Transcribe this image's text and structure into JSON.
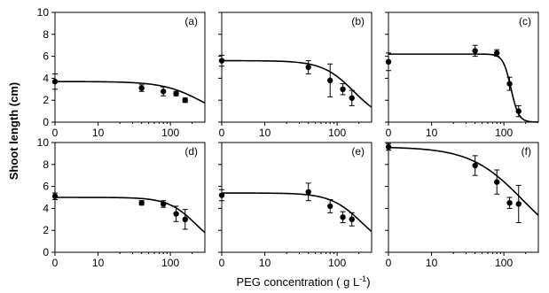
{
  "chart_data": {
    "type": "scatter",
    "layout": "2x3 grid of panels",
    "xlabel": "PEG concentration ( g L",
    "xlabel_sup": "-1",
    "xlabel_close": ")",
    "ylabel": "Shoot length (cm)",
    "x_scale": "log (0 shown at axis origin)",
    "x_ticks": [
      0,
      10,
      100
    ],
    "x_tick_labels": [
      "0",
      "10",
      "100"
    ],
    "xlim": [
      0,
      300
    ],
    "ylim": [
      0,
      10
    ],
    "y_ticks": [
      0,
      2,
      4,
      6,
      8,
      10
    ],
    "y_tick_labels": [
      "0",
      "2",
      "4",
      "6",
      "8",
      "10"
    ],
    "grid": false,
    "colors": {
      "marker": "#000000",
      "curve": "#000000"
    },
    "panels": [
      {
        "label": "(a)",
        "points": [
          {
            "x": 0,
            "y": 3.7,
            "err": 0.7
          },
          {
            "x": 40,
            "y": 3.1,
            "err": 0.3
          },
          {
            "x": 80,
            "y": 2.8,
            "err": 0.4
          },
          {
            "x": 120,
            "y": 2.6,
            "err": 0.2
          },
          {
            "x": 160,
            "y": 2.0,
            "err": 0.2
          }
        ],
        "curve": {
          "plateau": 3.7,
          "ec50": 280,
          "hill": 1.6
        }
      },
      {
        "label": "(b)",
        "points": [
          {
            "x": 0,
            "y": 5.6,
            "err": 0.5
          },
          {
            "x": 40,
            "y": 5.0,
            "err": 0.6
          },
          {
            "x": 80,
            "y": 3.8,
            "err": 1.5
          },
          {
            "x": 120,
            "y": 3.0,
            "err": 0.5
          },
          {
            "x": 160,
            "y": 2.2,
            "err": 0.7
          }
        ],
        "curve": {
          "plateau": 5.6,
          "ec50": 170,
          "hill": 2.0
        }
      },
      {
        "label": "(c)",
        "points": [
          {
            "x": 0,
            "y": 5.5,
            "err": 0.8
          },
          {
            "x": 40,
            "y": 6.5,
            "err": 0.5
          },
          {
            "x": 80,
            "y": 6.3,
            "err": 0.3
          },
          {
            "x": 120,
            "y": 3.5,
            "err": 0.6
          },
          {
            "x": 160,
            "y": 1.0,
            "err": 0.5
          }
        ],
        "curve": {
          "plateau": 6.2,
          "ec50": 125,
          "hill": 8
        }
      },
      {
        "label": "(d)",
        "points": [
          {
            "x": 0,
            "y": 5.1,
            "err": 0.3
          },
          {
            "x": 40,
            "y": 4.5,
            "err": 0.2
          },
          {
            "x": 80,
            "y": 4.4,
            "err": 0.3
          },
          {
            "x": 120,
            "y": 3.5,
            "err": 0.7
          },
          {
            "x": 160,
            "y": 3.0,
            "err": 0.9
          }
        ],
        "curve": {
          "plateau": 5.0,
          "ec50": 230,
          "hill": 2.2
        }
      },
      {
        "label": "(e)",
        "points": [
          {
            "x": 0,
            "y": 5.2,
            "err": 0.5
          },
          {
            "x": 40,
            "y": 5.5,
            "err": 0.8
          },
          {
            "x": 80,
            "y": 4.2,
            "err": 0.6
          },
          {
            "x": 120,
            "y": 3.2,
            "err": 0.5
          },
          {
            "x": 160,
            "y": 3.0,
            "err": 0.6
          }
        ],
        "curve": {
          "plateau": 5.4,
          "ec50": 220,
          "hill": 2.0
        }
      },
      {
        "label": "(f)",
        "points": [
          {
            "x": 0,
            "y": 9.6,
            "err": 0.3
          },
          {
            "x": 40,
            "y": 7.9,
            "err": 0.9
          },
          {
            "x": 80,
            "y": 6.4,
            "err": 1.1
          },
          {
            "x": 120,
            "y": 4.5,
            "err": 0.5
          },
          {
            "x": 160,
            "y": 4.4,
            "err": 1.7
          }
        ],
        "curve": {
          "plateau": 9.6,
          "ec50": 180,
          "hill": 1.2
        }
      }
    ]
  }
}
